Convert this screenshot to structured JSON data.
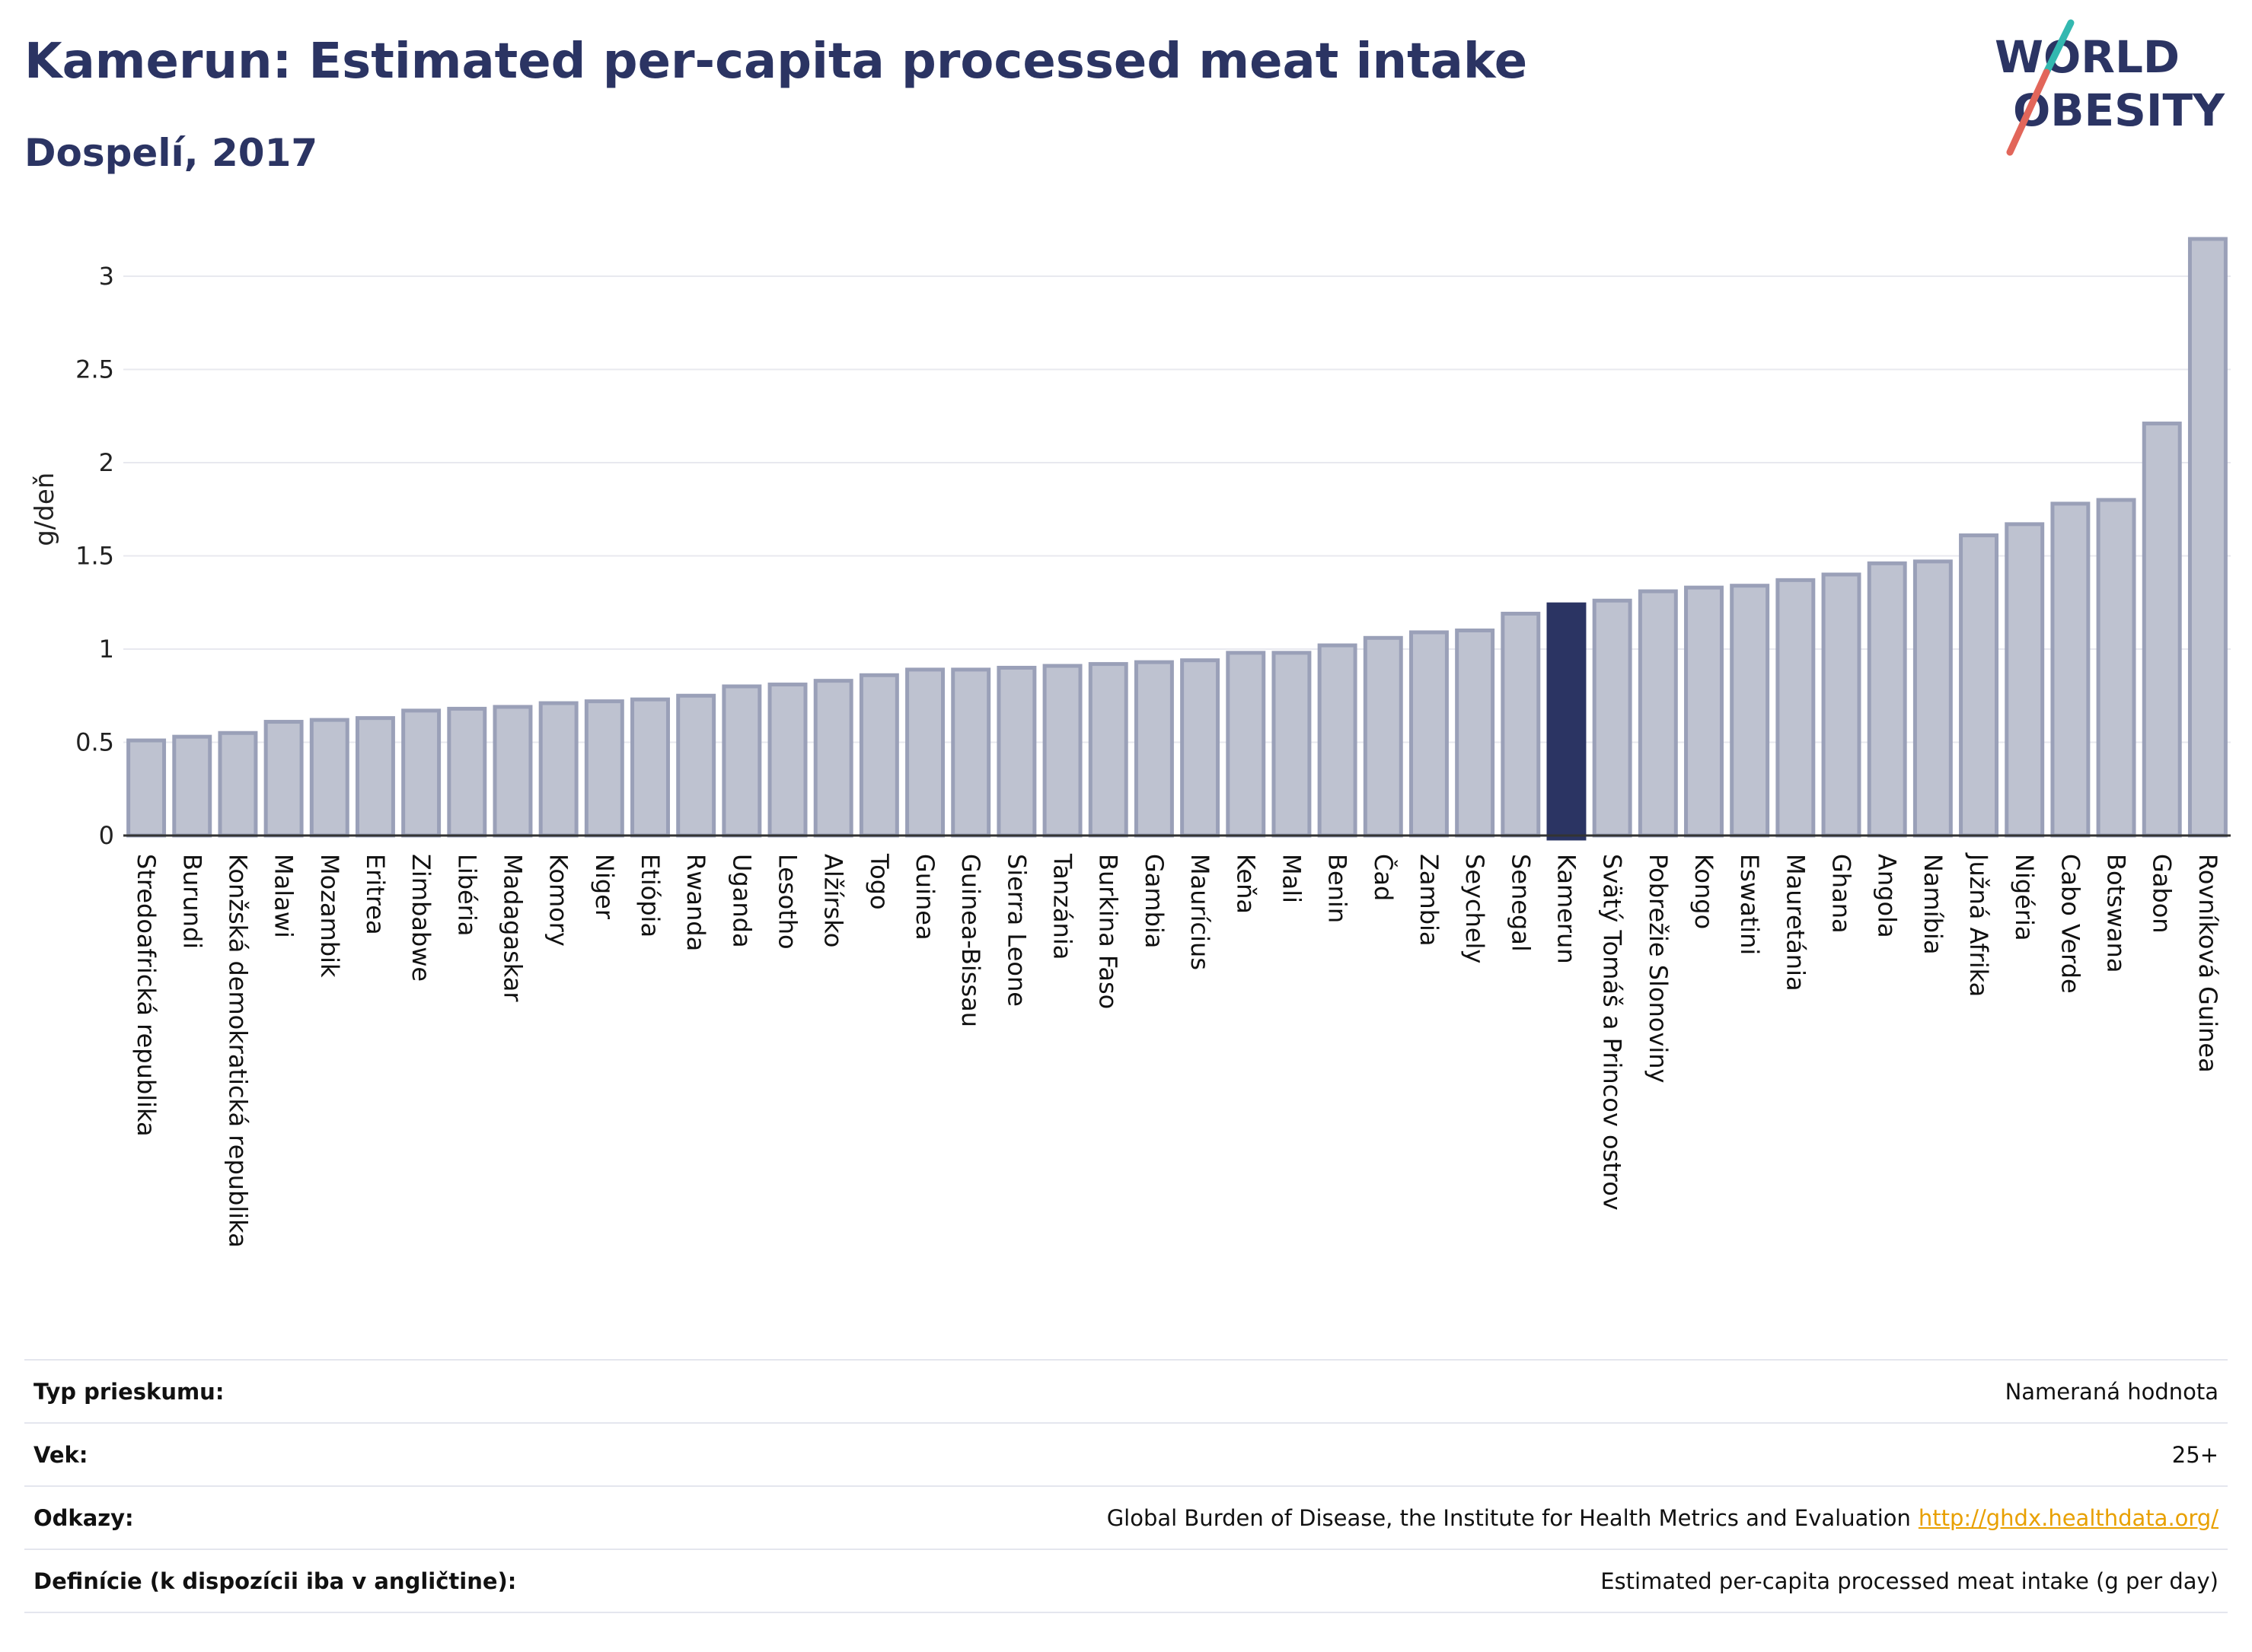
{
  "header": {
    "title": "Kamerun: Estimated per-capita processed meat intake",
    "subtitle": "Dospelí, 2017"
  },
  "logo": {
    "line1": "WORLD",
    "line2": "OBESITY",
    "colors": {
      "text": "#2b3463",
      "slash_teal": "#33b8b0",
      "slash_red": "#e2665a"
    }
  },
  "chart_data": {
    "type": "bar",
    "ylabel": "g/deň",
    "ylim": [
      0,
      3.2
    ],
    "yticks": [
      0,
      0.5,
      1,
      1.5,
      2,
      2.5,
      3
    ],
    "ytick_labels": [
      "0",
      "0.5",
      "1",
      "1.5",
      "2",
      "2.5",
      "3"
    ],
    "grid": true,
    "highlight": "Kamerun",
    "colors": {
      "bar": "#bec2d0",
      "bar_edge": "#9aa0b8",
      "highlight": "#2b3463"
    },
    "categories": [
      "Stredoafrická republika",
      "Burundi",
      "Konžská demokratická republika",
      "Malawi",
      "Mozambik",
      "Eritrea",
      "Zimbabwe",
      "Libéria",
      "Madagaskar",
      "Komory",
      "Niger",
      "Etiópia",
      "Rwanda",
      "Uganda",
      "Lesotho",
      "Alžírsko",
      "Togo",
      "Guinea",
      "Guinea-Bissau",
      "Sierra Leone",
      "Tanzánia",
      "Burkina Faso",
      "Gambia",
      "Maurícius",
      "Keňa",
      "Mali",
      "Benin",
      "Čad",
      "Zambia",
      "Seychely",
      "Senegal",
      "Kamerun",
      "Svätý Tomáš a Princov ostrov",
      "Pobrežie Slonoviny",
      "Kongo",
      "Eswatini",
      "Mauretánia",
      "Ghana",
      "Angola",
      "Namíbia",
      "Južná Afrika",
      "Nigéria",
      "Cabo Verde",
      "Botswana",
      "Gabon",
      "Rovníková Guinea"
    ],
    "values": [
      0.51,
      0.53,
      0.55,
      0.61,
      0.62,
      0.63,
      0.67,
      0.68,
      0.69,
      0.71,
      0.72,
      0.73,
      0.75,
      0.8,
      0.81,
      0.83,
      0.86,
      0.89,
      0.89,
      0.9,
      0.91,
      0.92,
      0.93,
      0.94,
      0.98,
      0.98,
      1.02,
      1.06,
      1.09,
      1.1,
      1.19,
      1.24,
      1.26,
      1.31,
      1.33,
      1.34,
      1.37,
      1.4,
      1.46,
      1.47,
      1.61,
      1.67,
      1.78,
      1.8,
      2.21,
      3.2
    ]
  },
  "info_table": [
    {
      "label": "Typ prieskumu:",
      "value": "Nameraná hodnota",
      "link": ""
    },
    {
      "label": "Vek:",
      "value": "25+",
      "link": ""
    },
    {
      "label": "Odkazy:",
      "value": "Global Burden of Disease, the Institute for Health Metrics and Evaluation",
      "link": "http://ghdx.healthdata.org/"
    },
    {
      "label": "Definície (k dispozícii iba v angličtine):",
      "value": "Estimated per-capita processed meat intake (g per day)",
      "link": ""
    }
  ]
}
